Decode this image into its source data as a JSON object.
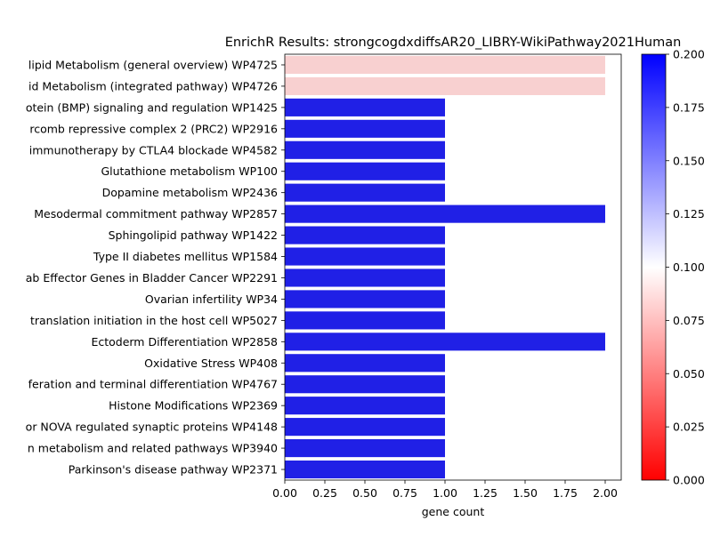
{
  "chart_data": {
    "type": "bar",
    "orientation": "horizontal",
    "title": "EnrichR Results: strongcogdxdiffsAR20_LIBRY-WikiPathway2021Human",
    "xlabel": "gene count",
    "ylabel": "",
    "xlim": [
      0,
      2.1
    ],
    "xticks": [
      "0.00",
      "0.25",
      "0.50",
      "0.75",
      "1.00",
      "1.25",
      "1.50",
      "1.75",
      "2.00"
    ],
    "grid": false,
    "categories": [
      "lipid Metabolism (general overview) WP4725",
      "id Metabolism (integrated pathway) WP4726",
      "otein (BMP) signaling and regulation WP1425",
      "rcomb repressive complex 2 (PRC2)  WP2916",
      "immunotherapy by CTLA4 blockade WP4582",
      "Glutathione metabolism WP100",
      "Dopamine metabolism WP2436",
      "Mesodermal commitment pathway WP2857",
      "Sphingolipid pathway WP1422",
      "Type II diabetes mellitus WP1584",
      "ab Effector Genes in Bladder Cancer WP2291",
      "Ovarian infertility WP34",
      "translation initiation in the host cell WP5027",
      "Ectoderm Differentiation WP2858",
      "Oxidative Stress WP408",
      "feration and terminal differentiation WP4767",
      "Histone Modifications WP2369",
      "or NOVA regulated synaptic proteins WP4148",
      "n metabolism and related pathways WP3940",
      "Parkinson's disease pathway WP2371"
    ],
    "values": [
      2,
      2,
      1,
      1,
      1,
      1,
      1,
      2,
      1,
      1,
      1,
      1,
      1,
      2,
      1,
      1,
      1,
      1,
      1,
      1
    ],
    "bar_colors": [
      "#f8d0d0",
      "#f8d0d0",
      "#2020e6",
      "#2020e6",
      "#2020e6",
      "#2020e6",
      "#2020e6",
      "#2020e6",
      "#2020e6",
      "#2020e6",
      "#2020e6",
      "#2020e6",
      "#2020e6",
      "#2020e6",
      "#2020e6",
      "#2020e6",
      "#2020e6",
      "#2020e6",
      "#2020e6",
      "#2020e6"
    ],
    "colorbar": {
      "range": [
        0.0,
        0.2
      ],
      "ticks": [
        "0.000",
        "0.025",
        "0.050",
        "0.075",
        "0.100",
        "0.125",
        "0.150",
        "0.175",
        "0.200"
      ],
      "colors": [
        "#ff0000",
        "#ffffff",
        "#0000ff"
      ]
    }
  }
}
